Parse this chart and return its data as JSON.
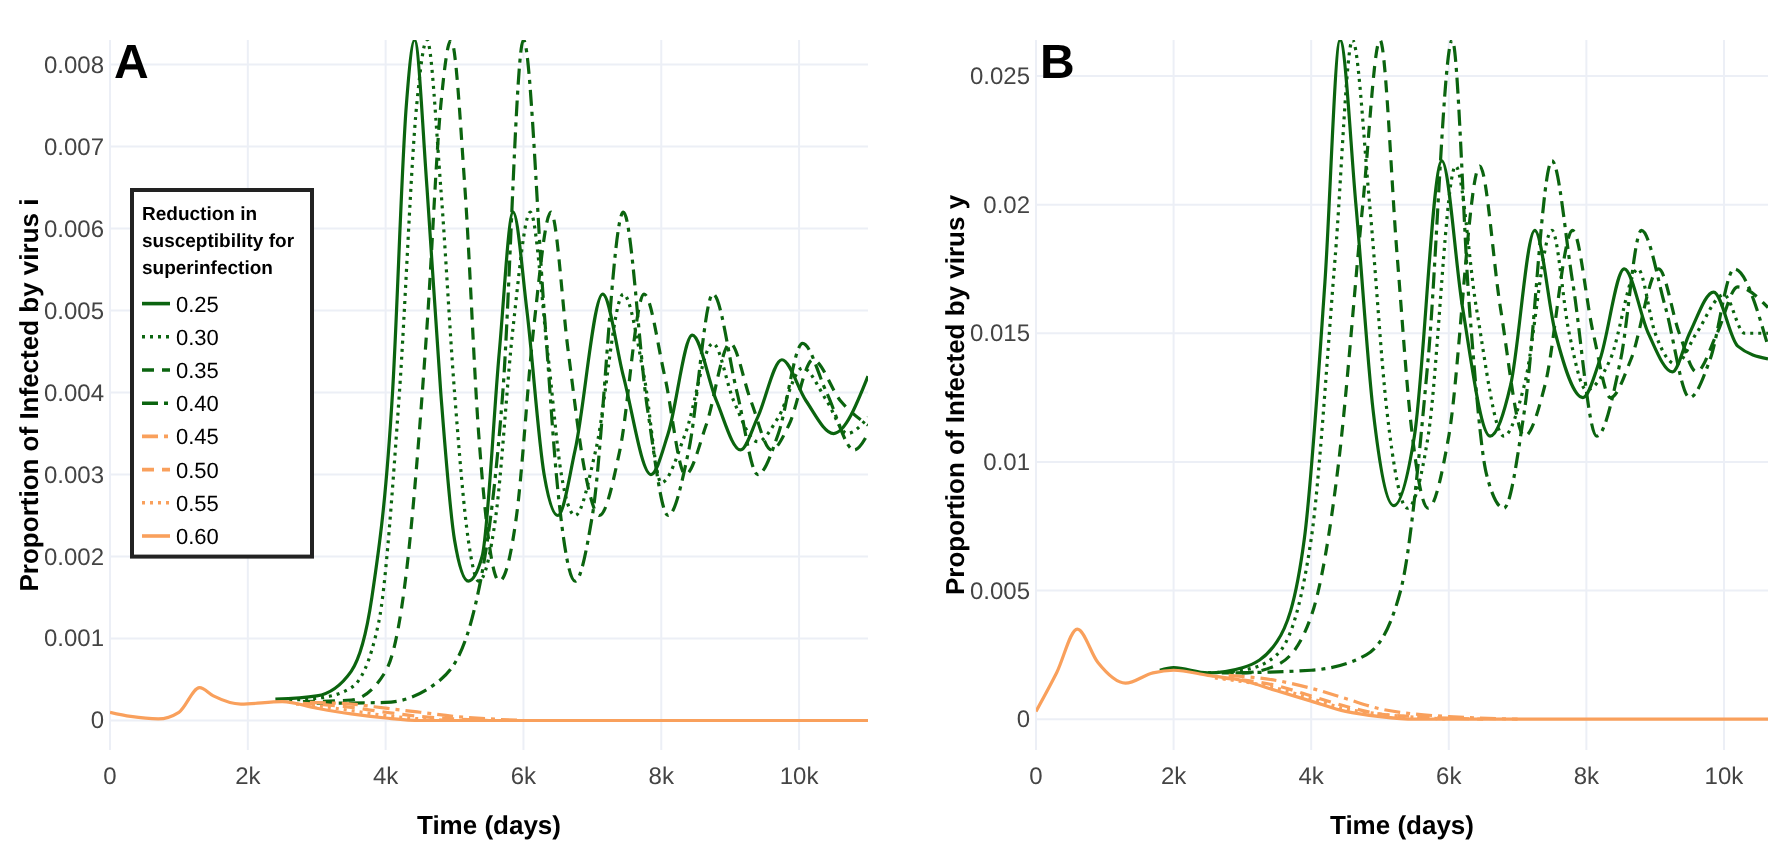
{
  "chart_data": [
    {
      "type": "line",
      "title": "A",
      "xlabel": "Time (days)",
      "ylabel": "Proportion of Infected by virus i",
      "legend_title": "Reduction in susceptibility for superinfection",
      "legend": "left",
      "grid": true,
      "xlim": [
        0,
        11000
      ],
      "xticks": [
        0,
        {
          "value": 2000,
          "label": "2k"
        },
        {
          "value": 4000,
          "label": "4k"
        },
        {
          "value": 6000,
          "label": "6k"
        },
        {
          "value": 8000,
          "label": "8k"
        },
        {
          "value": 10000,
          "label": "10k"
        }
      ],
      "ylim": [
        -0.00036,
        0.0083
      ],
      "yticks": [
        0,
        0.001,
        0.002,
        0.003,
        0.004,
        0.005,
        0.006,
        0.007,
        0.008
      ],
      "series": [
        {
          "name": "0.25",
          "color": "#0b640f",
          "line_style": "solid",
          "x": [
            2400,
            3000,
            3500,
            3800,
            4100,
            4300,
            4420,
            4600,
            4800,
            5000,
            5200,
            5400,
            5650,
            5850,
            6050,
            6300,
            6500,
            6750,
            7150,
            7450,
            7850,
            8100,
            8450,
            8800,
            9150,
            9400,
            9750,
            10100,
            10500,
            11000
          ],
          "values": [
            0.00026,
            0.0003,
            0.0006,
            0.0015,
            0.004,
            0.0075,
            0.0083,
            0.0065,
            0.004,
            0.0022,
            0.0017,
            0.002,
            0.0045,
            0.0062,
            0.005,
            0.003,
            0.0025,
            0.0033,
            0.0052,
            0.0042,
            0.003,
            0.0035,
            0.0047,
            0.0039,
            0.0033,
            0.0037,
            0.0044,
            0.0039,
            0.0035,
            0.0042
          ]
        },
        {
          "name": "0.30",
          "color": "#0b640f",
          "line_style": "dotted",
          "x": [
            2600,
            3000,
            3500,
            3900,
            4200,
            4450,
            4600,
            4800,
            5000,
            5200,
            5350,
            5600,
            5850,
            6100,
            6350,
            6550,
            6750,
            7050,
            7450,
            7750,
            8000,
            8350,
            8750,
            9050,
            9400,
            9700,
            10050,
            10400,
            10700,
            11000
          ],
          "values": [
            0.00025,
            0.00027,
            0.0004,
            0.0012,
            0.004,
            0.0075,
            0.0083,
            0.0065,
            0.004,
            0.0022,
            0.0017,
            0.0025,
            0.0048,
            0.0062,
            0.0045,
            0.003,
            0.0025,
            0.0033,
            0.0052,
            0.0042,
            0.0029,
            0.0035,
            0.0046,
            0.0039,
            0.0034,
            0.0037,
            0.0043,
            0.0039,
            0.0035,
            0.0037
          ]
        },
        {
          "name": "0.35",
          "color": "#0b640f",
          "line_style": "dashed",
          "x": [
            2800,
            3500,
            4000,
            4300,
            4600,
            4800,
            4950,
            5150,
            5350,
            5650,
            5900,
            6150,
            6400,
            6650,
            6900,
            7100,
            7400,
            7750,
            8050,
            8350,
            8650,
            9000,
            9300,
            9600,
            9850,
            10200,
            10600,
            11000
          ],
          "values": [
            0.00023,
            0.00025,
            0.0006,
            0.0018,
            0.0048,
            0.0075,
            0.0083,
            0.0065,
            0.0035,
            0.0017,
            0.0025,
            0.0048,
            0.0062,
            0.0045,
            0.003,
            0.0025,
            0.0033,
            0.0052,
            0.0042,
            0.003,
            0.0036,
            0.0046,
            0.0039,
            0.0033,
            0.0036,
            0.0044,
            0.0039,
            0.0036
          ]
        },
        {
          "name": "0.40",
          "color": "#0b640f",
          "line_style": "dashdot",
          "x": [
            3000,
            4000,
            4800,
            5300,
            5700,
            6000,
            6300,
            6500,
            6750,
            7000,
            7450,
            7800,
            8100,
            8400,
            8750,
            9100,
            9400,
            9700,
            10050,
            10400,
            10800,
            11000
          ],
          "values": [
            0.00021,
            0.00022,
            0.0005,
            0.0014,
            0.004,
            0.0083,
            0.005,
            0.0028,
            0.0017,
            0.0025,
            0.0062,
            0.0038,
            0.0025,
            0.0033,
            0.0052,
            0.004,
            0.003,
            0.0035,
            0.0046,
            0.004,
            0.0033,
            0.0035
          ]
        },
        {
          "name": "0.45",
          "color": "#f9a05c",
          "line_style": "dashdot",
          "x": [
            2900,
            3500,
            4000,
            4500,
            5000,
            5500,
            6000
          ],
          "values": [
            0.00022,
            0.0002,
            0.00015,
            0.0001,
            5e-05,
            2e-05,
            0
          ]
        },
        {
          "name": "0.50",
          "color": "#f9a05c",
          "line_style": "dashed",
          "x": [
            2800,
            3500,
            4000,
            4500,
            5000,
            5500
          ],
          "values": [
            0.00021,
            0.00016,
            0.0001,
            5e-05,
            2e-05,
            0
          ]
        },
        {
          "name": "0.55",
          "color": "#f9a05c",
          "line_style": "dotted",
          "x": [
            2700,
            3000,
            3500,
            4000,
            4500,
            5000
          ],
          "values": [
            0.0002,
            0.00018,
            0.00012,
            6e-05,
            2e-05,
            0
          ]
        },
        {
          "name": "0.60",
          "color": "#f9a05c",
          "line_style": "solid",
          "x": [
            0,
            300,
            700,
            1000,
            1300,
            1500,
            1900,
            2500,
            3000,
            3500,
            4000,
            4500,
            5000,
            11000
          ],
          "values": [
            0.0001,
            5e-05,
            2e-05,
            0.0001,
            0.0004,
            0.0003,
            0.0002,
            0.00023,
            0.00015,
            8e-05,
            3e-05,
            0,
            0,
            0
          ]
        }
      ]
    },
    {
      "type": "line",
      "title": "B",
      "xlabel": "Time (days)",
      "ylabel": "Proportion of Infected by virus y",
      "grid": true,
      "xlim": [
        0,
        10640
      ],
      "xticks": [
        0,
        {
          "value": 2000,
          "label": "2k"
        },
        {
          "value": 4000,
          "label": "4k"
        },
        {
          "value": 6000,
          "label": "6k"
        },
        {
          "value": 8000,
          "label": "8k"
        },
        {
          "value": 10000,
          "label": "10k"
        }
      ],
      "ylim": [
        -0.0012,
        0.0264
      ],
      "yticks": [
        0,
        0.005,
        0.01,
        0.015,
        0.02,
        0.025
      ],
      "series": [
        {
          "color": "#0b640f",
          "line_style": "solid",
          "x": [
            1800,
            2000,
            2500,
            3000,
            3500,
            3900,
            4200,
            4420,
            4650,
            4900,
            5200,
            5500,
            5900,
            6200,
            6600,
            6900,
            7250,
            7550,
            7950,
            8200,
            8550,
            8900,
            9250,
            9500,
            9850,
            10200,
            10640
          ],
          "values": [
            0.0019,
            0.002,
            0.0018,
            0.002,
            0.003,
            0.007,
            0.017,
            0.0264,
            0.02,
            0.012,
            0.0083,
            0.011,
            0.0217,
            0.016,
            0.011,
            0.013,
            0.019,
            0.015,
            0.0125,
            0.014,
            0.0175,
            0.015,
            0.0135,
            0.015,
            0.0166,
            0.0145,
            0.014
          ]
        },
        {
          "color": "#0b640f",
          "line_style": "dotted",
          "x": [
            2500,
            3000,
            3500,
            4000,
            4350,
            4600,
            4850,
            5100,
            5400,
            5700,
            6100,
            6400,
            6800,
            7100,
            7500,
            7750,
            8000,
            8350,
            8750,
            9000,
            9300,
            9600,
            10000,
            10300,
            10640
          ],
          "values": [
            0.0018,
            0.0019,
            0.0025,
            0.007,
            0.018,
            0.0264,
            0.02,
            0.012,
            0.0082,
            0.011,
            0.0215,
            0.016,
            0.011,
            0.013,
            0.019,
            0.015,
            0.0128,
            0.014,
            0.0175,
            0.015,
            0.0138,
            0.015,
            0.0165,
            0.015,
            0.015
          ]
        },
        {
          "color": "#0b640f",
          "line_style": "dashed",
          "x": [
            2700,
            3000,
            3500,
            4000,
            4400,
            4750,
            5000,
            5250,
            5450,
            5700,
            6000,
            6450,
            6750,
            7100,
            7400,
            7800,
            8100,
            8350,
            8650,
            9050,
            9350,
            9600,
            9900,
            10200,
            10640
          ],
          "values": [
            0.0018,
            0.0018,
            0.0021,
            0.004,
            0.01,
            0.02,
            0.0264,
            0.018,
            0.0115,
            0.0082,
            0.011,
            0.0215,
            0.016,
            0.011,
            0.013,
            0.019,
            0.015,
            0.0125,
            0.014,
            0.0175,
            0.015,
            0.0135,
            0.015,
            0.0168,
            0.016
          ]
        },
        {
          "color": "#0b640f",
          "line_style": "dashdot",
          "x": [
            2900,
            4000,
            4800,
            5300,
            5700,
            6050,
            6300,
            6550,
            6800,
            7100,
            7500,
            7800,
            8150,
            8500,
            8800,
            9150,
            9500,
            9800,
            10150,
            10640
          ],
          "values": [
            0.0018,
            0.0019,
            0.0025,
            0.005,
            0.014,
            0.0264,
            0.016,
            0.0095,
            0.0082,
            0.012,
            0.0217,
            0.017,
            0.011,
            0.014,
            0.019,
            0.016,
            0.0125,
            0.014,
            0.0175,
            0.0145
          ]
        },
        {
          "color": "#f9a05c",
          "line_style": "dashdot",
          "x": [
            2800,
            3500,
            4000,
            4500,
            5000,
            5500,
            6000,
            7000
          ],
          "values": [
            0.0017,
            0.0015,
            0.0012,
            0.0008,
            0.0004,
            0.0002,
            0.0001,
            0
          ]
        },
        {
          "color": "#f9a05c",
          "line_style": "dashed",
          "x": [
            2700,
            3500,
            4000,
            4500,
            5000,
            5500,
            6500
          ],
          "values": [
            0.0016,
            0.0013,
            0.0009,
            0.0005,
            0.0002,
            0.0001,
            0
          ]
        },
        {
          "color": "#f9a05c",
          "line_style": "dotted",
          "x": [
            2600,
            3500,
            4000,
            4500,
            5000,
            6000
          ],
          "values": [
            0.0016,
            0.0012,
            0.0008,
            0.0004,
            0.0002,
            0
          ]
        },
        {
          "color": "#f9a05c",
          "line_style": "solid",
          "x": [
            0,
            300,
            600,
            900,
            1300,
            1700,
            2000,
            2500,
            3000,
            3500,
            4000,
            4500,
            5000,
            5500,
            6000,
            7000,
            10640
          ],
          "values": [
            0.0003,
            0.0018,
            0.0035,
            0.0022,
            0.0014,
            0.0018,
            0.0019,
            0.0017,
            0.0015,
            0.0011,
            0.0007,
            0.0003,
            0.0001,
            0,
            0,
            0,
            0
          ]
        }
      ]
    }
  ]
}
